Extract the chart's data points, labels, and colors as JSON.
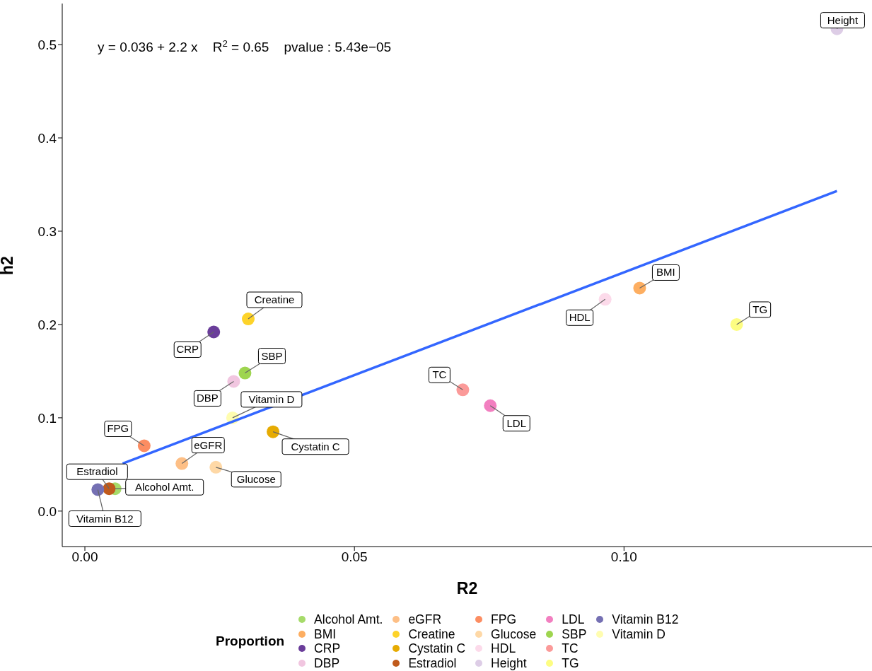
{
  "chart_data": {
    "type": "scatter",
    "xlabel": "R2",
    "ylabel": "h2",
    "legend_title": "Proportion",
    "legend": "bottom",
    "marker": "circle",
    "xlim": [
      -0.0042,
      0.146
    ],
    "xticks": [
      {
        "value": 0,
        "label": "0.00"
      },
      {
        "value": 0.05,
        "label": "0.05"
      },
      {
        "value": 0.1,
        "label": "0.10"
      }
    ],
    "ylim": [
      -0.038,
      0.544
    ],
    "yticks": [
      {
        "value": 0,
        "label": "0.0"
      },
      {
        "value": 0.1,
        "label": "0.1"
      },
      {
        "value": 0.2,
        "label": "0.2"
      },
      {
        "value": 0.3,
        "label": "0.3"
      },
      {
        "value": 0.4,
        "label": "0.4"
      },
      {
        "value": 0.5,
        "label": "0.5"
      }
    ],
    "annotations": [
      "y = 0.036 + 2.2 x    R$^{2}$ = 0.65    pvalue : 5.43e−05"
    ],
    "series": [
      {
        "name": "Alcohol Amt.",
        "color": "#a6db6a",
        "x": [
          0.0056
        ],
        "values": [
          0.024
        ]
      },
      {
        "name": "BMI",
        "color": "#fdae61",
        "x": [
          0.1029
        ],
        "values": [
          0.239
        ]
      },
      {
        "name": "CRP",
        "color": "#6a3d9a",
        "x": [
          0.0239
        ],
        "values": [
          0.192
        ]
      },
      {
        "name": "DBP",
        "color": "#f1c6e0",
        "x": [
          0.0276
        ],
        "values": [
          0.139
        ]
      },
      {
        "name": "eGFR",
        "color": "#fdbf86",
        "x": [
          0.018
        ],
        "values": [
          0.051
        ]
      },
      {
        "name": "Creatine",
        "color": "#fdd32a",
        "x": [
          0.0303
        ],
        "values": [
          0.206
        ]
      },
      {
        "name": "Cystatin C",
        "color": "#e6ab02",
        "x": [
          0.0349
        ],
        "values": [
          0.085
        ]
      },
      {
        "name": "Estradiol",
        "color": "#c05a1c",
        "x": [
          0.0045
        ],
        "values": [
          0.024
        ]
      },
      {
        "name": "FPG",
        "color": "#fc8d62",
        "x": [
          0.011
        ],
        "values": [
          0.07
        ]
      },
      {
        "name": "Glucose",
        "color": "#fed8a6",
        "x": [
          0.0243
        ],
        "values": [
          0.047
        ]
      },
      {
        "name": "HDL",
        "color": "#fcdaea",
        "x": [
          0.0965
        ],
        "values": [
          0.227
        ]
      },
      {
        "name": "Height",
        "color": "#ddcde6",
        "x": [
          0.1395
        ],
        "values": [
          0.517
        ]
      },
      {
        "name": "LDL",
        "color": "#f27fc0",
        "x": [
          0.0752
        ],
        "values": [
          0.113
        ]
      },
      {
        "name": "SBP",
        "color": "#9ed54f",
        "x": [
          0.0297
        ],
        "values": [
          0.148
        ]
      },
      {
        "name": "TC",
        "color": "#fb9a99",
        "x": [
          0.0701
        ],
        "values": [
          0.13
        ]
      },
      {
        "name": "TG",
        "color": "#fdfd82",
        "x": [
          0.1209
        ],
        "values": [
          0.2
        ]
      },
      {
        "name": "Vitamin B12",
        "color": "#7570b3",
        "x": [
          0.0024
        ],
        "values": [
          0.023
        ]
      },
      {
        "name": "Vitamin D",
        "color": "#fffdb0",
        "x": [
          0.0274
        ],
        "values": [
          0.1
        ]
      },
      {
        "type": "line",
        "marker": "none",
        "color": "#3366ff",
        "x": [
          0.007,
          0.1395
        ],
        "values": [
          0.051,
          0.343
        ]
      }
    ]
  }
}
